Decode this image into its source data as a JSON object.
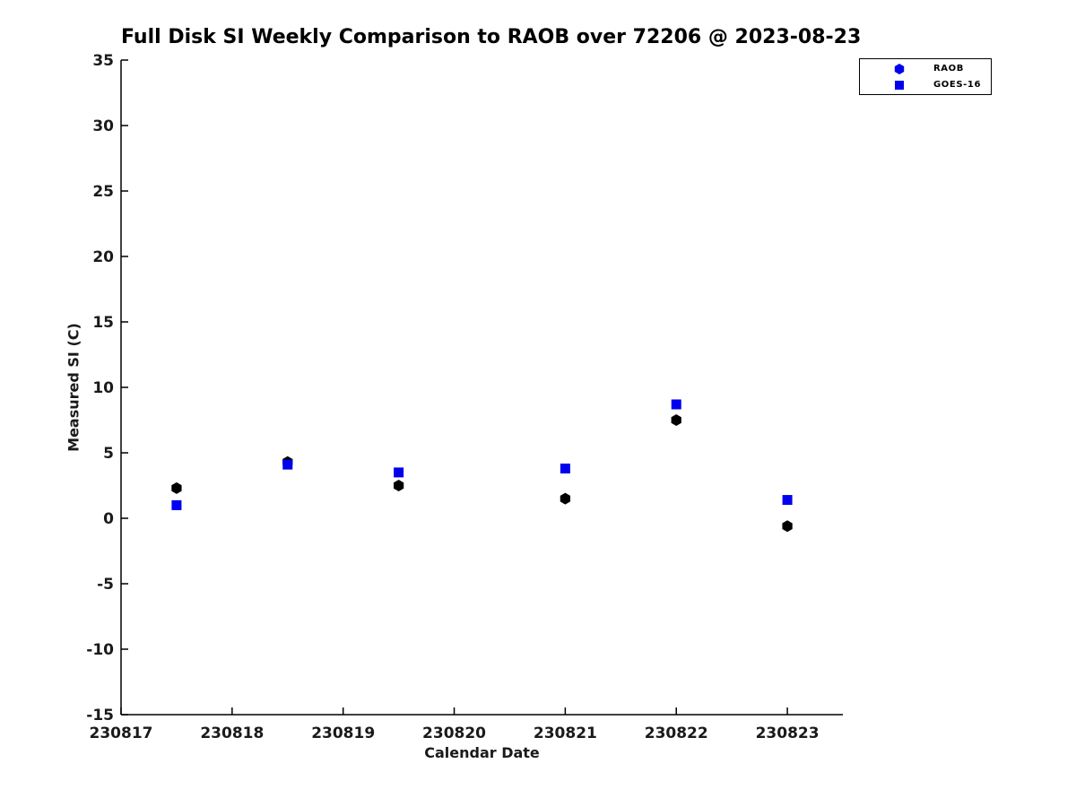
{
  "figure": {
    "background": "#ffffff"
  },
  "chart_data": {
    "type": "scatter",
    "title": "Full Disk SI Weekly Comparison to RAOB over 72206 @ 2023-08-23",
    "xlabel": "Calendar Date",
    "ylabel": "Measured SI (C)",
    "xlim": [
      230817,
      230823.5
    ],
    "ylim": [
      -15,
      35
    ],
    "xticks": [
      230817,
      230818,
      230819,
      230820,
      230821,
      230822,
      230823
    ],
    "yticks": [
      -15,
      -10,
      -5,
      0,
      5,
      10,
      15,
      20,
      25,
      30,
      35
    ],
    "grid": false,
    "axis_color": "#000000",
    "tick_label_color": "#1a1a1a",
    "legend": {
      "position": "outside-top-right",
      "entries": [
        {
          "label": "RAOB",
          "marker": "hexagon",
          "color": "#0000ee"
        },
        {
          "label": "GOES-16",
          "marker": "square",
          "color": "#0000ee"
        }
      ]
    },
    "series": [
      {
        "name": "RAOB",
        "marker": "hexagon",
        "marker_color": "#000000",
        "x": [
          230817.5,
          230818.5,
          230819.5,
          230821,
          230822,
          230823
        ],
        "y": [
          2.3,
          4.3,
          2.5,
          1.5,
          7.5,
          -0.6
        ]
      },
      {
        "name": "GOES-16",
        "marker": "square",
        "marker_color": "#0000ee",
        "x": [
          230817.5,
          230818.5,
          230819.5,
          230821,
          230822,
          230823
        ],
        "y": [
          1.0,
          4.1,
          3.5,
          3.8,
          8.7,
          1.4
        ]
      }
    ]
  }
}
